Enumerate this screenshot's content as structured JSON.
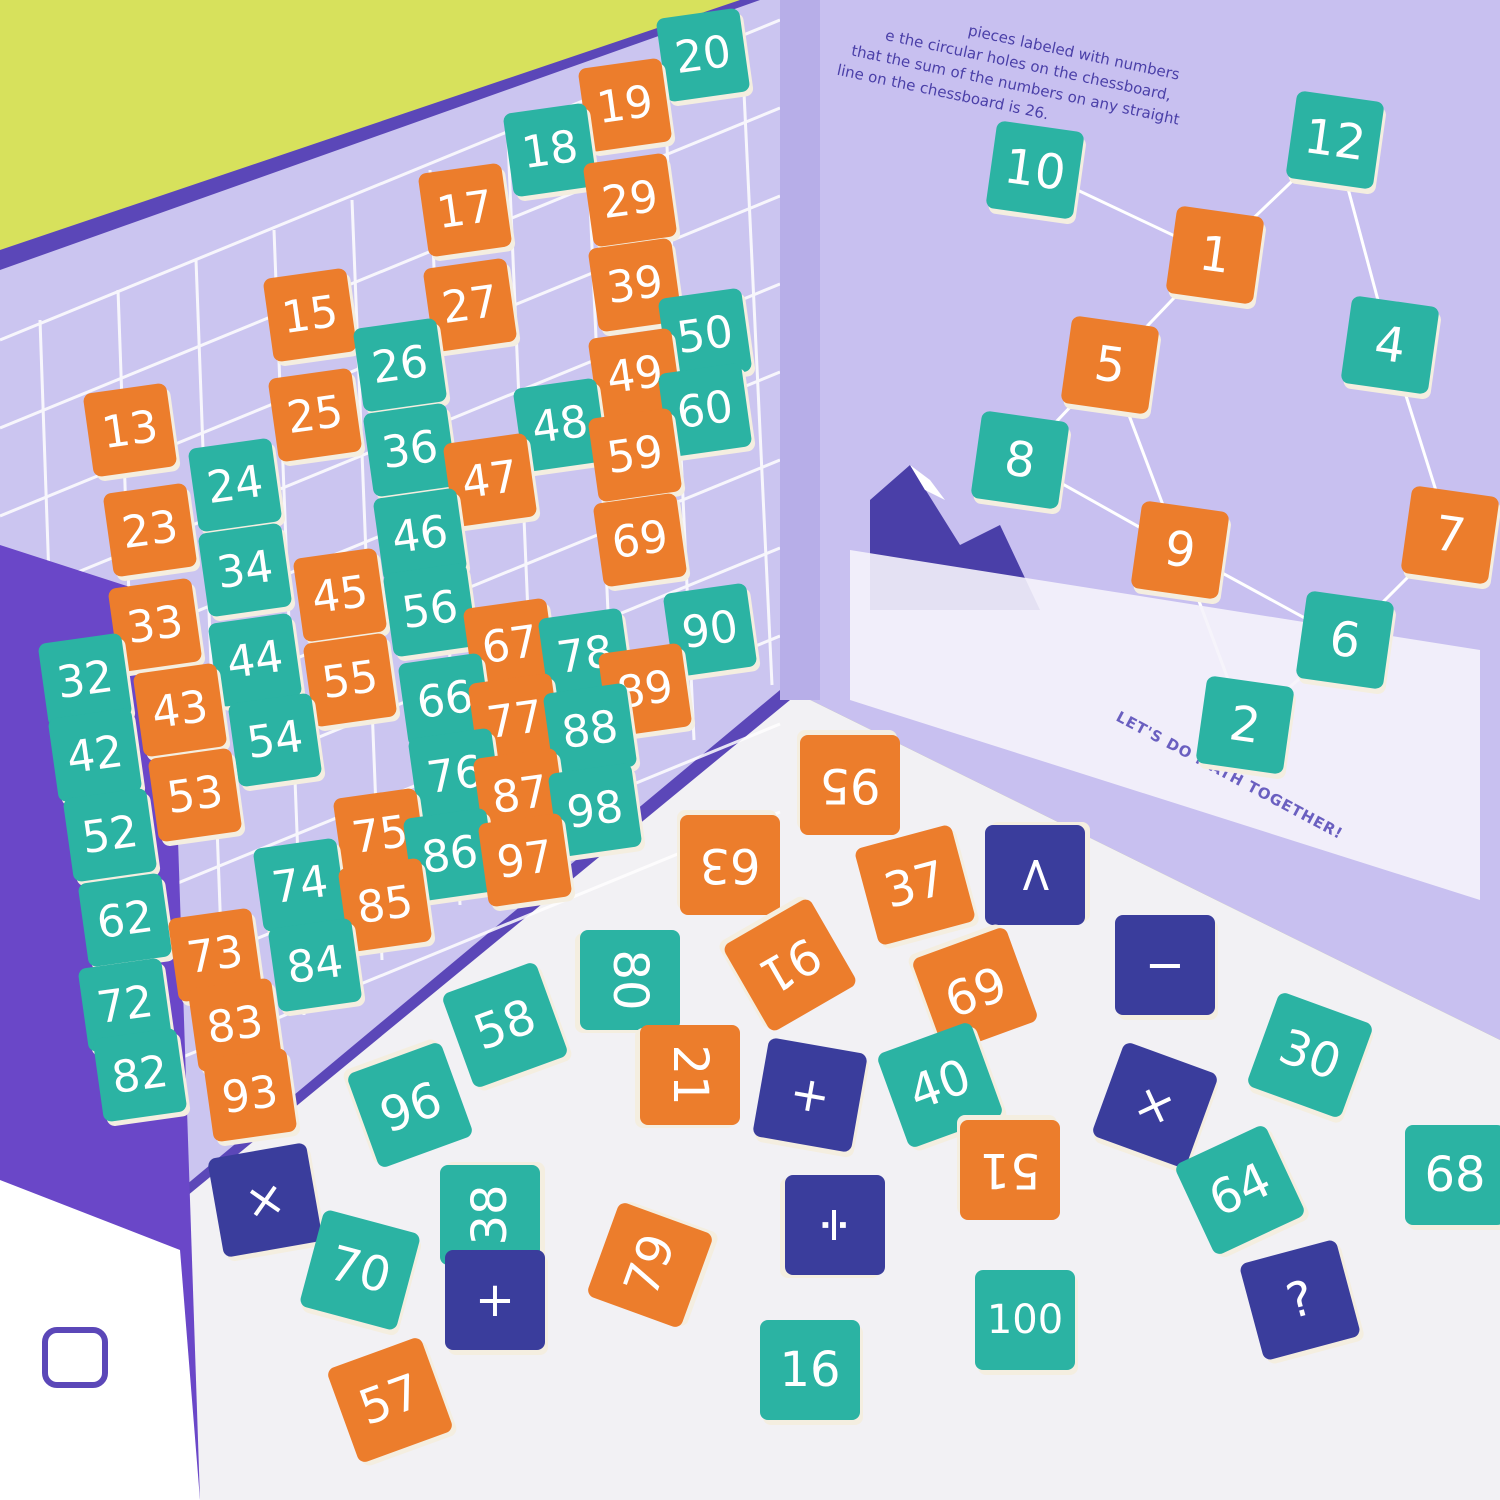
{
  "instructions": [
    "pieces labeled with numbers",
    "e the circular holes on the chessboard,",
    "that the sum of the numbers on any straight",
    "line on the chessboard is 26."
  ],
  "footer": "LET'S DO MATH TOGETHER!",
  "board_tiles": [
    {
      "label": "20",
      "color": "#2bb3a3"
    },
    {
      "label": "19",
      "color": "#ec7d2c"
    },
    {
      "label": "18",
      "color": "#2bb3a3"
    },
    {
      "label": "17",
      "color": "#ec7d2c"
    },
    {
      "label": "29",
      "color": "#ec7d2c"
    },
    {
      "label": "15",
      "color": "#ec7d2c"
    },
    {
      "label": "27",
      "color": "#ec7d2c"
    },
    {
      "label": "39",
      "color": "#ec7d2c"
    },
    {
      "label": "26",
      "color": "#2bb3a3"
    },
    {
      "label": "50",
      "color": "#2bb3a3"
    },
    {
      "label": "13",
      "color": "#ec7d2c"
    },
    {
      "label": "25",
      "color": "#ec7d2c"
    },
    {
      "label": "49",
      "color": "#ec7d2c"
    },
    {
      "label": "60",
      "color": "#2bb3a3"
    },
    {
      "label": "24",
      "color": "#2bb3a3"
    },
    {
      "label": "36",
      "color": "#2bb3a3"
    },
    {
      "label": "48",
      "color": "#2bb3a3"
    },
    {
      "label": "47",
      "color": "#ec7d2c"
    },
    {
      "label": "59",
      "color": "#ec7d2c"
    },
    {
      "label": "23",
      "color": "#ec7d2c"
    },
    {
      "label": "46",
      "color": "#2bb3a3"
    },
    {
      "label": "69",
      "color": "#ec7d2c"
    },
    {
      "label": "34",
      "color": "#2bb3a3"
    },
    {
      "label": "45",
      "color": "#ec7d2c"
    },
    {
      "label": "33",
      "color": "#ec7d2c"
    },
    {
      "label": "56",
      "color": "#2bb3a3"
    },
    {
      "label": "67",
      "color": "#ec7d2c"
    },
    {
      "label": "78",
      "color": "#2bb3a3"
    },
    {
      "label": "90",
      "color": "#2bb3a3"
    },
    {
      "label": "32",
      "color": "#2bb3a3"
    },
    {
      "label": "44",
      "color": "#2bb3a3"
    },
    {
      "label": "55",
      "color": "#ec7d2c"
    },
    {
      "label": "66",
      "color": "#2bb3a3"
    },
    {
      "label": "89",
      "color": "#ec7d2c"
    },
    {
      "label": "43",
      "color": "#ec7d2c"
    },
    {
      "label": "77",
      "color": "#ec7d2c"
    },
    {
      "label": "88",
      "color": "#2bb3a3"
    },
    {
      "label": "42",
      "color": "#2bb3a3"
    },
    {
      "label": "54",
      "color": "#2bb3a3"
    },
    {
      "label": "53",
      "color": "#ec7d2c"
    },
    {
      "label": "76",
      "color": "#2bb3a3"
    },
    {
      "label": "87",
      "color": "#ec7d2c"
    },
    {
      "label": "98",
      "color": "#2bb3a3"
    },
    {
      "label": "75",
      "color": "#ec7d2c"
    },
    {
      "label": "86",
      "color": "#2bb3a3"
    },
    {
      "label": "97",
      "color": "#ec7d2c"
    },
    {
      "label": "52",
      "color": "#2bb3a3"
    },
    {
      "label": "74",
      "color": "#2bb3a3"
    },
    {
      "label": "62",
      "color": "#2bb3a3"
    },
    {
      "label": "85",
      "color": "#ec7d2c"
    },
    {
      "label": "73",
      "color": "#ec7d2c"
    },
    {
      "label": "84",
      "color": "#2bb3a3"
    },
    {
      "label": "72",
      "color": "#2bb3a3"
    },
    {
      "label": "83",
      "color": "#ec7d2c"
    },
    {
      "label": "82",
      "color": "#2bb3a3"
    },
    {
      "label": "93",
      "color": "#ec7d2c"
    }
  ],
  "puzzle_tiles": [
    {
      "label": "10",
      "color": "#2bb3a3"
    },
    {
      "label": "12",
      "color": "#2bb3a3"
    },
    {
      "label": "1",
      "color": "#ec7d2c"
    },
    {
      "label": "5",
      "color": "#ec7d2c"
    },
    {
      "label": "4",
      "color": "#2bb3a3"
    },
    {
      "label": "8",
      "color": "#2bb3a3"
    },
    {
      "label": "9",
      "color": "#ec7d2c"
    },
    {
      "label": "7",
      "color": "#ec7d2c"
    },
    {
      "label": "6",
      "color": "#2bb3a3"
    },
    {
      "label": "2",
      "color": "#2bb3a3"
    }
  ],
  "loose_tiles": [
    {
      "label": "95",
      "color": "#ec7d2c"
    },
    {
      "label": "63",
      "color": "#ec7d2c"
    },
    {
      "label": "37",
      "color": "#ec7d2c"
    },
    {
      "label": ">",
      "color": "#3a3d9c"
    },
    {
      "label": "−",
      "color": "#3a3d9c"
    },
    {
      "label": "91",
      "color": "#ec7d2c"
    },
    {
      "label": "69",
      "color": "#ec7d2c"
    },
    {
      "label": "80",
      "color": "#2bb3a3"
    },
    {
      "label": "58",
      "color": "#2bb3a3"
    },
    {
      "label": "21",
      "color": "#ec7d2c"
    },
    {
      "label": "40",
      "color": "#2bb3a3"
    },
    {
      "label": "30",
      "color": "#2bb3a3"
    },
    {
      "label": "96",
      "color": "#2bb3a3"
    },
    {
      "label": "+",
      "color": "#3a3d9c"
    },
    {
      "label": "×",
      "color": "#3a3d9c"
    },
    {
      "label": "51",
      "color": "#ec7d2c"
    },
    {
      "label": "68",
      "color": "#2bb3a3"
    },
    {
      "label": "64",
      "color": "#2bb3a3"
    },
    {
      "label": "×",
      "color": "#3a3d9c"
    },
    {
      "label": "38",
      "color": "#2bb3a3"
    },
    {
      "label": "÷",
      "color": "#3a3d9c"
    },
    {
      "label": "79",
      "color": "#ec7d2c"
    },
    {
      "label": "70",
      "color": "#2bb3a3"
    },
    {
      "label": "+",
      "color": "#3a3d9c"
    },
    {
      "label": "?",
      "color": "#3a3d9c"
    },
    {
      "label": "100",
      "color": "#2bb3a3"
    },
    {
      "label": "16",
      "color": "#2bb3a3"
    },
    {
      "label": "57",
      "color": "#ec7d2c"
    }
  ]
}
